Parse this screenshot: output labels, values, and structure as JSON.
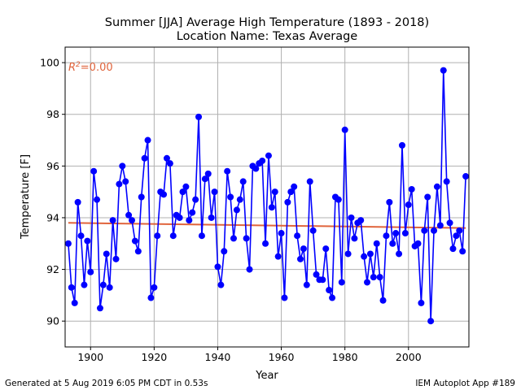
{
  "chart_data": {
    "type": "line",
    "title": "Summer [JJA] Average High Temperature (1893 - 2018)",
    "subtitle": "Location Name: Texas Average",
    "xlabel": "Year",
    "ylabel": "Temperature [F]",
    "xlim": [
      1892,
      2019
    ],
    "ylim": [
      89,
      100.6
    ],
    "xticks": [
      1900,
      1920,
      1940,
      1960,
      1980,
      2000
    ],
    "yticks": [
      90,
      92,
      94,
      96,
      98,
      100
    ],
    "grid": true,
    "annotation": "R^2=0.00",
    "series": [
      {
        "color": "#0000ff",
        "marker": "circle",
        "x": [
          1893,
          1894,
          1895,
          1896,
          1897,
          1898,
          1899,
          1900,
          1901,
          1902,
          1903,
          1904,
          1905,
          1906,
          1907,
          1908,
          1909,
          1910,
          1911,
          1912,
          1913,
          1914,
          1915,
          1916,
          1917,
          1918,
          1919,
          1920,
          1921,
          1922,
          1923,
          1924,
          1925,
          1926,
          1927,
          1928,
          1929,
          1930,
          1931,
          1932,
          1933,
          1934,
          1935,
          1936,
          1937,
          1938,
          1939,
          1940,
          1941,
          1942,
          1943,
          1944,
          1945,
          1946,
          1947,
          1948,
          1949,
          1950,
          1951,
          1952,
          1953,
          1954,
          1955,
          1956,
          1957,
          1958,
          1959,
          1960,
          1961,
          1962,
          1963,
          1964,
          1965,
          1966,
          1967,
          1968,
          1969,
          1970,
          1971,
          1972,
          1973,
          1974,
          1975,
          1976,
          1977,
          1978,
          1979,
          1980,
          1981,
          1982,
          1983,
          1984,
          1985,
          1986,
          1987,
          1988,
          1989,
          1990,
          1991,
          1992,
          1993,
          1994,
          1995,
          1996,
          1997,
          1998,
          1999,
          2000,
          2001,
          2002,
          2003,
          2004,
          2005,
          2006,
          2007,
          2008,
          2009,
          2010,
          2011,
          2012,
          2013,
          2014,
          2015,
          2016,
          2017,
          2018
        ],
        "y": [
          93.0,
          91.3,
          90.7,
          94.6,
          93.3,
          91.4,
          93.1,
          91.9,
          95.8,
          94.7,
          90.5,
          91.4,
          92.6,
          91.3,
          93.9,
          92.4,
          95.3,
          96.0,
          95.4,
          94.1,
          93.9,
          93.1,
          92.7,
          94.8,
          96.3,
          97.0,
          90.9,
          91.3,
          93.3,
          95.0,
          94.9,
          96.3,
          96.1,
          93.3,
          94.1,
          94.0,
          95.0,
          95.2,
          93.9,
          94.2,
          94.7,
          97.9,
          93.3,
          95.5,
          95.7,
          94.0,
          95.0,
          92.1,
          91.4,
          92.7,
          95.8,
          94.8,
          93.2,
          94.3,
          94.7,
          95.4,
          93.2,
          92.0,
          96.0,
          95.9,
          96.1,
          96.2,
          93.0,
          96.4,
          94.4,
          95.0,
          92.5,
          93.4,
          90.9,
          94.6,
          95.0,
          95.2,
          93.3,
          92.4,
          92.8,
          91.4,
          95.4,
          93.5,
          91.8,
          91.6,
          91.6,
          92.8,
          91.2,
          90.9,
          94.8,
          94.7,
          91.5,
          97.4,
          92.6,
          94.0,
          93.2,
          93.8,
          93.9,
          92.5,
          91.5,
          92.6,
          91.7,
          93.0,
          91.7,
          90.8,
          93.3,
          94.6,
          93.0,
          93.4,
          92.6,
          96.8,
          93.4,
          94.5,
          95.1,
          92.9,
          93.0,
          90.7,
          93.5,
          94.8,
          90.0,
          93.5,
          95.2,
          93.7,
          99.7,
          95.4,
          93.8,
          92.8,
          93.3,
          93.5,
          92.7,
          95.6
        ]
      }
    ],
    "trend": {
      "color": "#e0643c",
      "x": [
        1893,
        2018
      ],
      "y": [
        93.8,
        93.6
      ]
    }
  },
  "footer": {
    "left": "Generated at 5 Aug 2019 6:05 PM CDT in 0.53s",
    "right": "IEM Autoplot App #189"
  }
}
